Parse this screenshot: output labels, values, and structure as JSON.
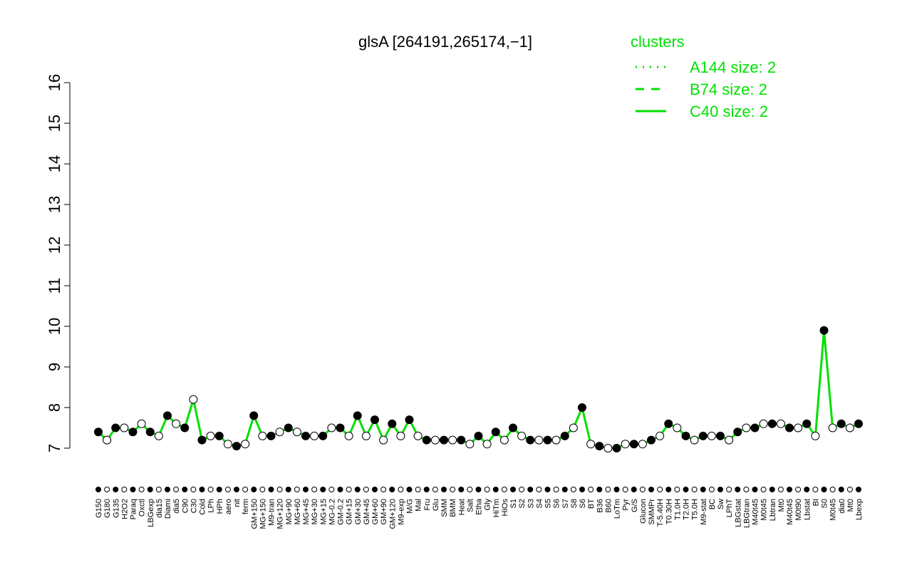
{
  "chart_data": {
    "type": "line",
    "title": "glsA [264191,265174,−1]",
    "legend_title": "clusters",
    "legend": [
      {
        "name": "A144 size: 2",
        "dash": "dotted"
      },
      {
        "name": "B74 size: 2",
        "dash": "dashed"
      },
      {
        "name": "C40 size: 2",
        "dash": "solid"
      }
    ],
    "legend_color": "#00e000",
    "color": "#00e000",
    "categories": [
      "G150",
      "G180",
      "G135",
      "H2O2",
      "Paraq",
      "Oxctl",
      "LBGexp",
      "dia15",
      "Diami",
      "dia5",
      "C90",
      "C30",
      "Cold",
      "LPh",
      "HPh",
      "aero",
      "nit",
      "ferm",
      "GM+150",
      "MG+150",
      "M9-tran",
      "MG+120",
      "MG+90",
      "MG+60",
      "MG+45",
      "MG+30",
      "MG+15",
      "MG-0.2",
      "GM-0.2",
      "GM+15",
      "GM+30",
      "GM+45",
      "GM+60",
      "GM+90",
      "GM+120",
      "M9-exp",
      "M/G",
      "Mal",
      "Fru",
      "Glu",
      "SMM",
      "BMM",
      "Heat",
      "Salt",
      "Etha",
      "Gly",
      "HiTm",
      "HiOs",
      "S1",
      "S2",
      "S3",
      "S4",
      "S5",
      "S6",
      "S7",
      "S8",
      "S6",
      "BT",
      "B36",
      "B60",
      "LoTm",
      "Pyr",
      "G/S",
      "Glucon",
      "SMMPr",
      "T-5.40H",
      "T0.30H",
      "T1.0H",
      "T2.0H",
      "T5.0H",
      "M9-stat",
      "BC",
      "Sw",
      "LPhT",
      "LBGstat",
      "LBGtran",
      "M40t45",
      "M0t45",
      "Lbtran",
      "Mt0",
      "M40t45",
      "M0t90",
      "Lbstat",
      "BI",
      "S0",
      "M0t45",
      "dia0",
      "Mt0",
      "Lbexp"
    ],
    "values": [
      7.4,
      7.2,
      7.5,
      7.5,
      7.4,
      7.6,
      7.4,
      7.3,
      7.8,
      7.6,
      7.5,
      8.2,
      7.2,
      7.3,
      7.3,
      7.1,
      7.05,
      7.1,
      7.8,
      7.3,
      7.3,
      7.4,
      7.5,
      7.4,
      7.3,
      7.3,
      7.3,
      7.5,
      7.5,
      7.3,
      7.8,
      7.3,
      7.7,
      7.2,
      7.6,
      7.3,
      7.7,
      7.3,
      7.2,
      7.2,
      7.2,
      7.2,
      7.2,
      7.1,
      7.3,
      7.1,
      7.4,
      7.2,
      7.5,
      7.3,
      7.2,
      7.2,
      7.2,
      7.2,
      7.3,
      7.5,
      8.0,
      7.1,
      7.05,
      7.0,
      7.0,
      7.1,
      7.1,
      7.1,
      7.2,
      7.3,
      7.6,
      7.5,
      7.3,
      7.2,
      7.3,
      7.3,
      7.3,
      7.2,
      7.4,
      7.5,
      7.5,
      7.6,
      7.6,
      7.6,
      7.5,
      7.5,
      7.6,
      7.3,
      9.9,
      7.5,
      7.6,
      7.5,
      7.6
    ],
    "ylim": [
      7,
      16
    ],
    "yticks": [
      7,
      8,
      9,
      10,
      11,
      12,
      13,
      14,
      15,
      16
    ]
  }
}
